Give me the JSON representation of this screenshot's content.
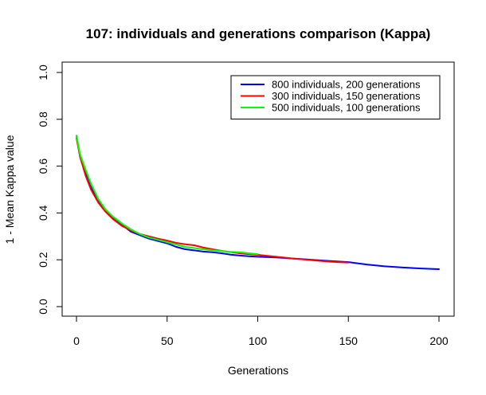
{
  "chart_data": {
    "type": "line",
    "title": "107: individuals and generations comparison (Kappa)",
    "xlabel": "Generations",
    "ylabel": "1 - Mean Kappa value",
    "xlim": [
      0,
      200
    ],
    "ylim": [
      0.0,
      1.0
    ],
    "xticks": [
      0,
      50,
      100,
      150,
      200
    ],
    "yticks": [
      0.0,
      0.2,
      0.4,
      0.6,
      0.8,
      1.0
    ],
    "xtick_labels": [
      "0",
      "50",
      "100",
      "150",
      "200"
    ],
    "ytick_labels": [
      "0.0",
      "0.2",
      "0.4",
      "0.6",
      "0.8",
      "1.0"
    ],
    "grid": false,
    "legend_position": "top-right",
    "series": [
      {
        "name": "800 individuals, 200 generations",
        "color": "#0000ff",
        "x": [
          0,
          2,
          5,
          8,
          12,
          16,
          20,
          25,
          30,
          35,
          40,
          45,
          50,
          55,
          60,
          65,
          70,
          75,
          80,
          85,
          90,
          95,
          100,
          110,
          120,
          130,
          140,
          150,
          160,
          170,
          180,
          190,
          200
        ],
        "y": [
          0.73,
          0.64,
          0.57,
          0.51,
          0.45,
          0.41,
          0.38,
          0.35,
          0.32,
          0.305,
          0.29,
          0.28,
          0.27,
          0.255,
          0.245,
          0.24,
          0.235,
          0.232,
          0.228,
          0.222,
          0.218,
          0.215,
          0.213,
          0.21,
          0.205,
          0.2,
          0.195,
          0.19,
          0.18,
          0.172,
          0.167,
          0.163,
          0.16
        ]
      },
      {
        "name": "300 individuals, 150 generations",
        "color": "#ff0000",
        "x": [
          0,
          2,
          5,
          8,
          12,
          16,
          20,
          25,
          30,
          35,
          40,
          45,
          50,
          55,
          60,
          65,
          70,
          75,
          80,
          85,
          90,
          95,
          100,
          110,
          120,
          130,
          140,
          150
        ],
        "y": [
          0.72,
          0.64,
          0.56,
          0.5,
          0.445,
          0.405,
          0.375,
          0.345,
          0.325,
          0.31,
          0.3,
          0.29,
          0.282,
          0.272,
          0.266,
          0.262,
          0.252,
          0.245,
          0.238,
          0.233,
          0.228,
          0.224,
          0.221,
          0.213,
          0.205,
          0.198,
          0.192,
          0.188
        ]
      },
      {
        "name": "500 individuals, 100 generations",
        "color": "#00ff00",
        "x": [
          0,
          2,
          5,
          8,
          12,
          16,
          20,
          25,
          30,
          35,
          40,
          45,
          50,
          55,
          60,
          65,
          70,
          75,
          80,
          85,
          90,
          95,
          100
        ],
        "y": [
          0.73,
          0.65,
          0.585,
          0.525,
          0.46,
          0.415,
          0.385,
          0.355,
          0.33,
          0.31,
          0.295,
          0.285,
          0.275,
          0.265,
          0.255,
          0.25,
          0.245,
          0.24,
          0.237,
          0.234,
          0.232,
          0.228,
          0.224
        ]
      }
    ]
  }
}
